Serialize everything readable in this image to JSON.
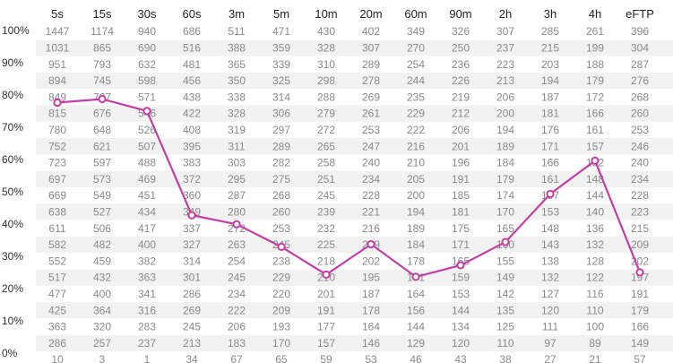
{
  "chart_data": {
    "type": "line",
    "title": "",
    "xlabel": "",
    "ylabel": "",
    "categories": [
      "5s",
      "15s",
      "30s",
      "60s",
      "3m",
      "5m",
      "10m",
      "20m",
      "60m",
      "90m",
      "2h",
      "3h",
      "4h",
      "eFTP"
    ],
    "y_ticks": [
      "100%",
      "90%",
      "80%",
      "70%",
      "60%",
      "50%",
      "40%",
      "30%",
      "20%",
      "10%",
      "0%"
    ],
    "ylim": [
      0,
      100
    ],
    "grid": false,
    "series": [
      {
        "values": [
          77.7,
          78.8,
          75.1,
          42.8,
          40.0,
          33.0,
          24.4,
          33.8,
          23.7,
          27.3,
          34.5,
          49.4,
          59.7,
          25.1
        ]
      }
    ],
    "table": {
      "rows": [
        [
          1447,
          1174,
          940,
          686,
          511,
          471,
          430,
          402,
          349,
          326,
          307,
          285,
          261,
          396
        ],
        [
          1031,
          865,
          690,
          516,
          388,
          359,
          328,
          307,
          270,
          250,
          237,
          215,
          199,
          304
        ],
        [
          951,
          793,
          632,
          481,
          365,
          339,
          310,
          289,
          254,
          236,
          223,
          203,
          188,
          287
        ],
        [
          894,
          745,
          598,
          456,
          350,
          325,
          298,
          278,
          244,
          226,
          213,
          194,
          179,
          276
        ],
        [
          849,
          707,
          571,
          438,
          338,
          314,
          288,
          269,
          235,
          219,
          206,
          187,
          172,
          268
        ],
        [
          815,
          676,
          546,
          422,
          328,
          306,
          279,
          261,
          229,
          212,
          200,
          181,
          166,
          260
        ],
        [
          780,
          648,
          526,
          408,
          319,
          297,
          272,
          253,
          222,
          206,
          194,
          176,
          161,
          253
        ],
        [
          752,
          621,
          507,
          395,
          311,
          289,
          265,
          247,
          216,
          201,
          189,
          171,
          157,
          246
        ],
        [
          723,
          597,
          488,
          383,
          303,
          282,
          258,
          240,
          210,
          196,
          184,
          166,
          152,
          240
        ],
        [
          697,
          573,
          469,
          372,
          295,
          275,
          251,
          234,
          205,
          191,
          179,
          161,
          148,
          234
        ],
        [
          669,
          549,
          451,
          360,
          287,
          268,
          245,
          228,
          200,
          185,
          174,
          157,
          144,
          228
        ],
        [
          638,
          527,
          434,
          349,
          280,
          260,
          239,
          221,
          194,
          181,
          170,
          153,
          140,
          223
        ],
        [
          611,
          506,
          417,
          337,
          272,
          253,
          232,
          216,
          189,
          175,
          165,
          148,
          136,
          215
        ],
        [
          582,
          482,
          400,
          327,
          263,
          245,
          225,
          209,
          184,
          171,
          160,
          143,
          132,
          209
        ],
        [
          552,
          459,
          382,
          314,
          254,
          238,
          218,
          202,
          178,
          165,
          155,
          138,
          128,
          202
        ],
        [
          517,
          432,
          363,
          301,
          245,
          229,
          210,
          195,
          171,
          159,
          149,
          132,
          122,
          197
        ],
        [
          477,
          400,
          341,
          286,
          234,
          220,
          201,
          187,
          164,
          153,
          142,
          127,
          116,
          191
        ],
        [
          425,
          364,
          316,
          269,
          222,
          209,
          191,
          178,
          156,
          144,
          135,
          120,
          110,
          179
        ],
        [
          363,
          320,
          283,
          245,
          206,
          193,
          177,
          164,
          144,
          134,
          125,
          111,
          100,
          166
        ],
        [
          286,
          257,
          237,
          213,
          183,
          170,
          157,
          146,
          129,
          120,
          110,
          97,
          89,
          149
        ],
        [
          10,
          3,
          1,
          34,
          67,
          65,
          59,
          53,
          46,
          43,
          38,
          27,
          21,
          57
        ]
      ]
    },
    "colors": {
      "line": "#c23fa5",
      "marker_fill": "#ffffff",
      "band": "#f2f2f2",
      "cell_text": "#8a8a8a",
      "header_text": "#222222"
    }
  }
}
